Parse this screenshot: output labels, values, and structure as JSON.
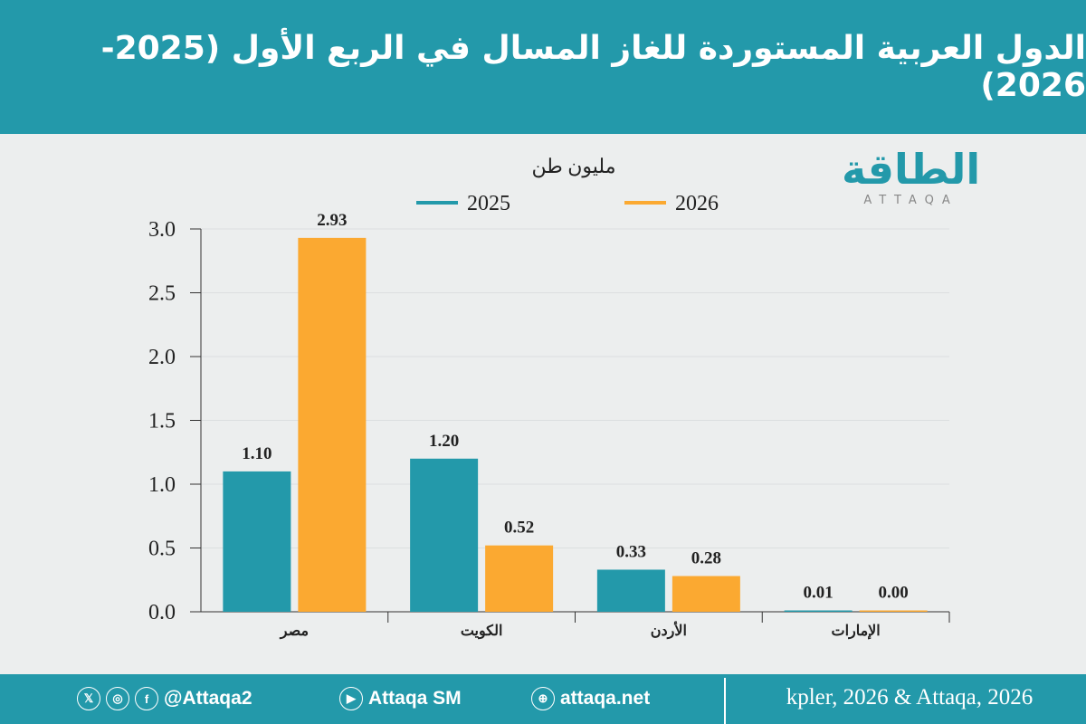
{
  "title": "الدول العربية المستوردة للغاز المسال في الربع الأول (2025-2026)",
  "logo": {
    "arabic": "الطاقة",
    "latin": "ATTAQA"
  },
  "chart_data": {
    "type": "bar",
    "ylabel": "مليون طن",
    "categories": [
      "مصر",
      "الكويت",
      "الأردن",
      "الإمارات"
    ],
    "series": [
      {
        "name": "2025",
        "color": "#2399aa",
        "values": [
          1.1,
          1.2,
          0.33,
          0.01
        ],
        "labels": [
          "1.10",
          "1.20",
          "0.33",
          "0.01"
        ]
      },
      {
        "name": "2026",
        "color": "#fba931",
        "values": [
          2.93,
          0.52,
          0.28,
          0.0
        ],
        "labels": [
          "2.93",
          "0.52",
          "0.28",
          "0.00"
        ]
      }
    ],
    "ylim": [
      0,
      3.0
    ],
    "yticks": [
      "0.0",
      "0.5",
      "1.0",
      "1.5",
      "2.0",
      "2.5",
      "3.0"
    ],
    "grid": true,
    "legend": "top"
  },
  "footer": {
    "twitter": "@Attaqa2",
    "youtube": "Attaqa SM",
    "website": "attaqa.net",
    "source": "kpler, 2026 & Attaqa, 2026"
  }
}
